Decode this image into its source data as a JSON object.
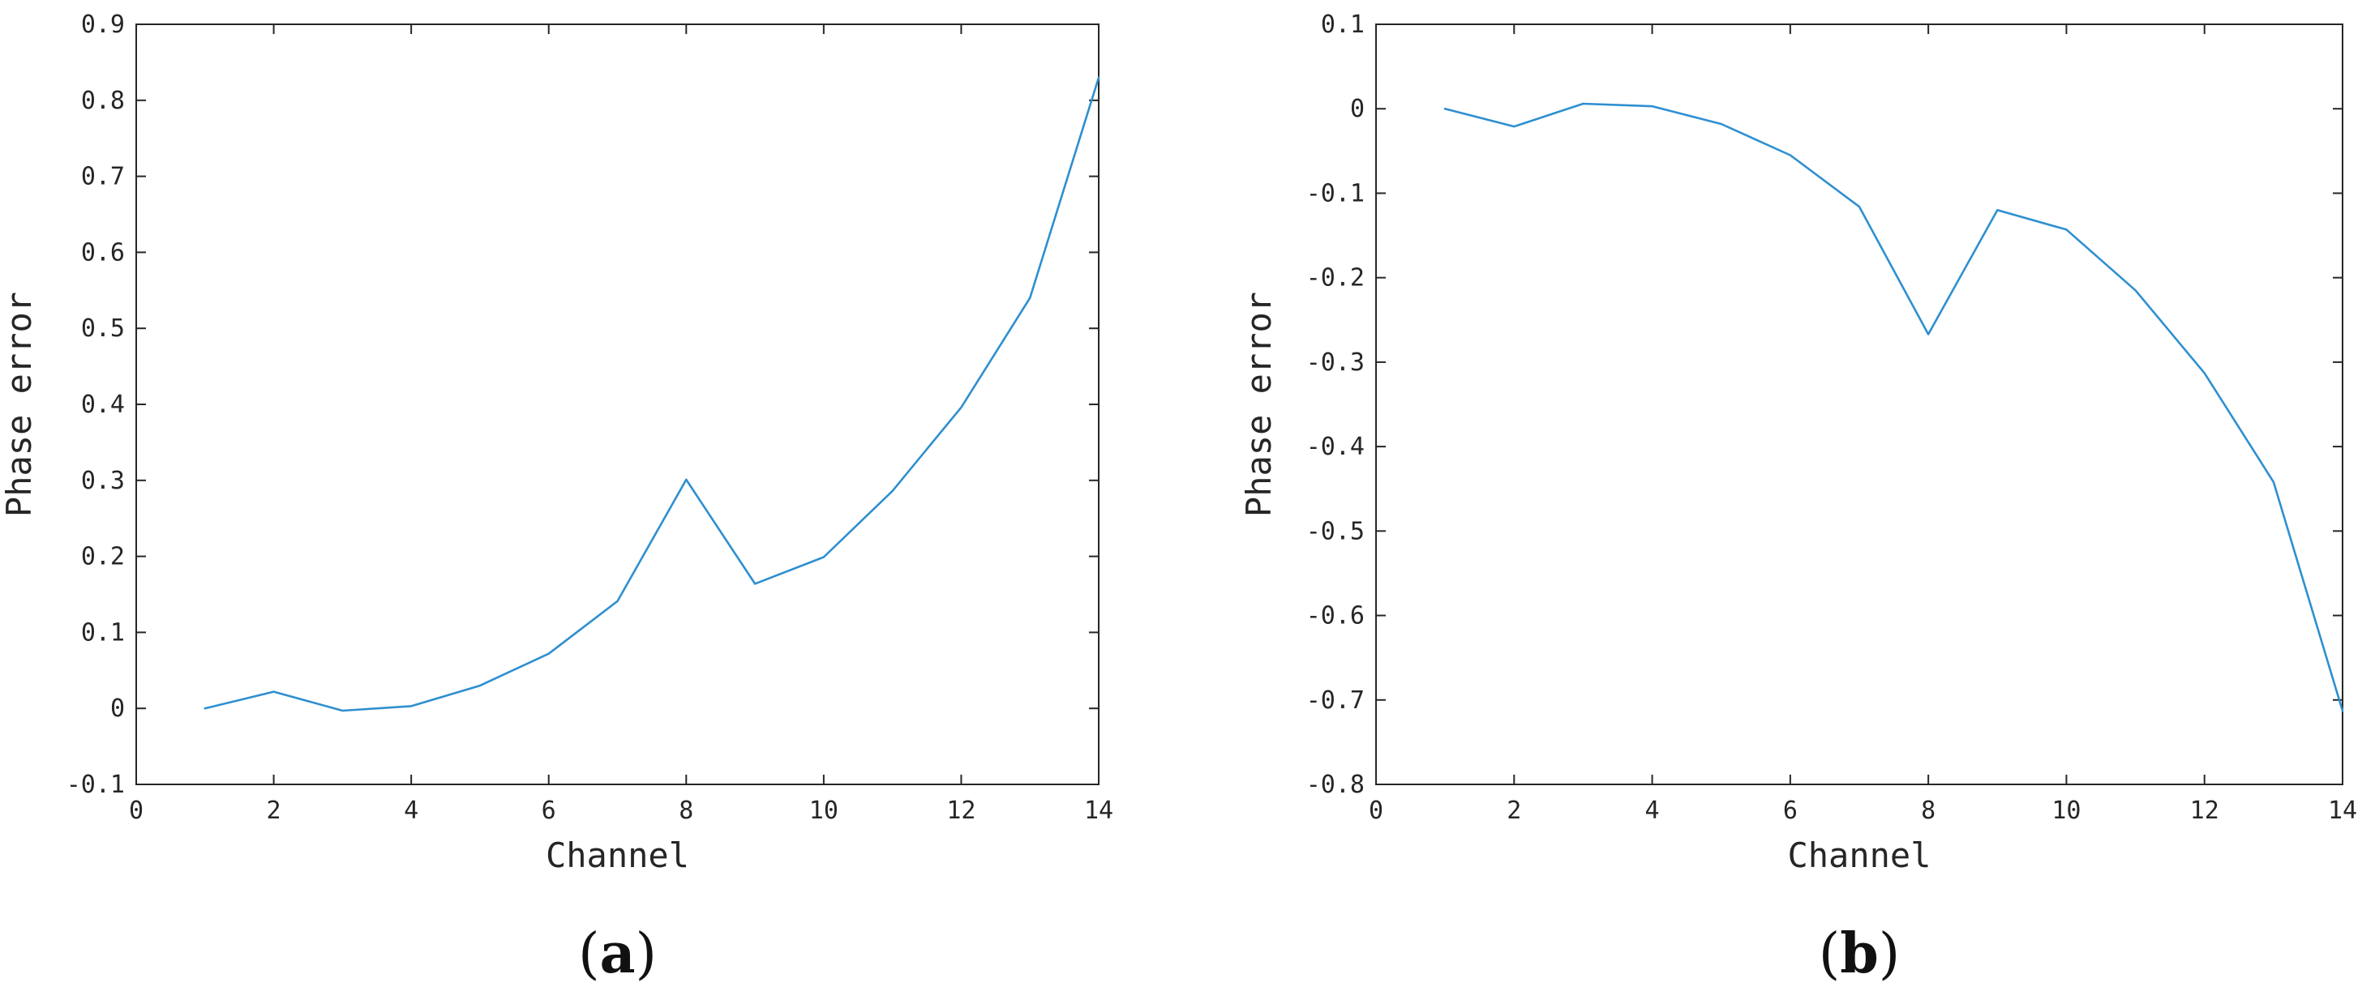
{
  "colors": {
    "series": "#2e8fd0",
    "axis": "#262626",
    "background": "#ffffff"
  },
  "chart_data": [
    {
      "type": "line",
      "panel_label": "a",
      "xlabel": "Channel",
      "ylabel": "Phase error",
      "xlim": [
        0,
        14
      ],
      "ylim": [
        -0.1,
        0.9
      ],
      "xticks": [
        0,
        2,
        4,
        6,
        8,
        10,
        12,
        14
      ],
      "xtick_labels": [
        "0",
        "2",
        "4",
        "6",
        "8",
        "10",
        "12",
        "14"
      ],
      "yticks": [
        -0.1,
        0,
        0.1,
        0.2,
        0.3,
        0.4,
        0.5,
        0.6,
        0.7,
        0.8,
        0.9
      ],
      "ytick_labels": [
        "-0.1",
        "0",
        "0.1",
        "0.2",
        "0.3",
        "0.4",
        "0.5",
        "0.6",
        "0.7",
        "0.8",
        "0.9"
      ],
      "grid": false,
      "series": [
        {
          "x": [
            1,
            2,
            3,
            4,
            5,
            6,
            7,
            8,
            9,
            10,
            11,
            12,
            13,
            14
          ],
          "y": [
            0,
            0.022,
            -0.003,
            0.003,
            0.03,
            0.072,
            0.141,
            0.301,
            0.164,
            0.199,
            0.286,
            0.396,
            0.54,
            0.83
          ]
        }
      ]
    },
    {
      "type": "line",
      "panel_label": "b",
      "xlabel": "Channel",
      "ylabel": "Phase error",
      "xlim": [
        0,
        14
      ],
      "ylim": [
        -0.8,
        0.1
      ],
      "xticks": [
        0,
        2,
        4,
        6,
        8,
        10,
        12,
        14
      ],
      "xtick_labels": [
        "0",
        "2",
        "4",
        "6",
        "8",
        "10",
        "12",
        "14"
      ],
      "yticks": [
        -0.8,
        -0.7,
        -0.6,
        -0.5,
        -0.4,
        -0.3,
        -0.2,
        -0.1,
        0,
        0.1
      ],
      "ytick_labels": [
        "-0.8",
        "-0.7",
        "-0.6",
        "-0.5",
        "-0.4",
        "-0.3",
        "-0.2",
        "-0.1",
        "0",
        "0.1"
      ],
      "grid": false,
      "series": [
        {
          "x": [
            1,
            2,
            3,
            4,
            5,
            6,
            7,
            8,
            9,
            10,
            11,
            12,
            13,
            14
          ],
          "y": [
            0,
            -0.021,
            0.006,
            0.003,
            -0.018,
            -0.055,
            -0.116,
            -0.267,
            -0.12,
            -0.143,
            -0.215,
            -0.313,
            -0.442,
            -0.713
          ]
        }
      ]
    }
  ]
}
